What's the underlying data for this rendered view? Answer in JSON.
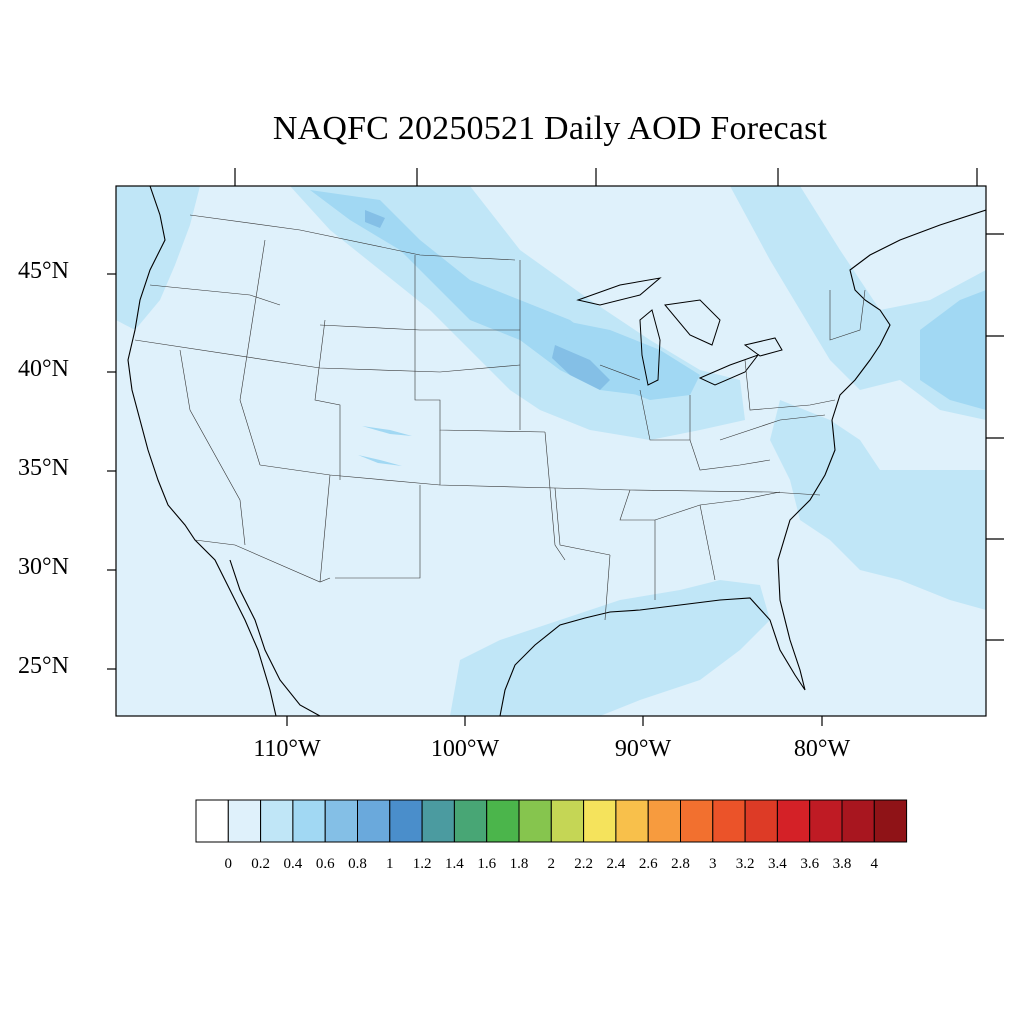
{
  "title": "NAQFC 20250521 Daily AOD Forecast",
  "map": {
    "lat_labels": [
      "45°N",
      "40°N",
      "35°N",
      "30°N",
      "25°N"
    ],
    "lon_labels": [
      "110°W",
      "100°W",
      "90°W",
      "80°W"
    ],
    "background_color": "#dff1fb"
  },
  "colorbar": {
    "labels": [
      "0",
      "0.2",
      "0.4",
      "0.6",
      "0.8",
      "1",
      "1.2",
      "1.4",
      "1.6",
      "1.8",
      "2",
      "2.2",
      "2.4",
      "2.6",
      "2.8",
      "3",
      "3.2",
      "3.4",
      "3.6",
      "3.8",
      "4"
    ],
    "colors": [
      "#ffffff",
      "#dff1fb",
      "#c0e6f7",
      "#a1d8f3",
      "#84bfe6",
      "#6aa9dc",
      "#4a8ecb",
      "#4b9ba0",
      "#48a675",
      "#4bb54b",
      "#86c54e",
      "#c5d655",
      "#f5e35c",
      "#f8c04b",
      "#f79b3e",
      "#f2702f",
      "#eb5329",
      "#dd3b26",
      "#d42127",
      "#bf1b24",
      "#a8161f",
      "#8f1317"
    ]
  }
}
